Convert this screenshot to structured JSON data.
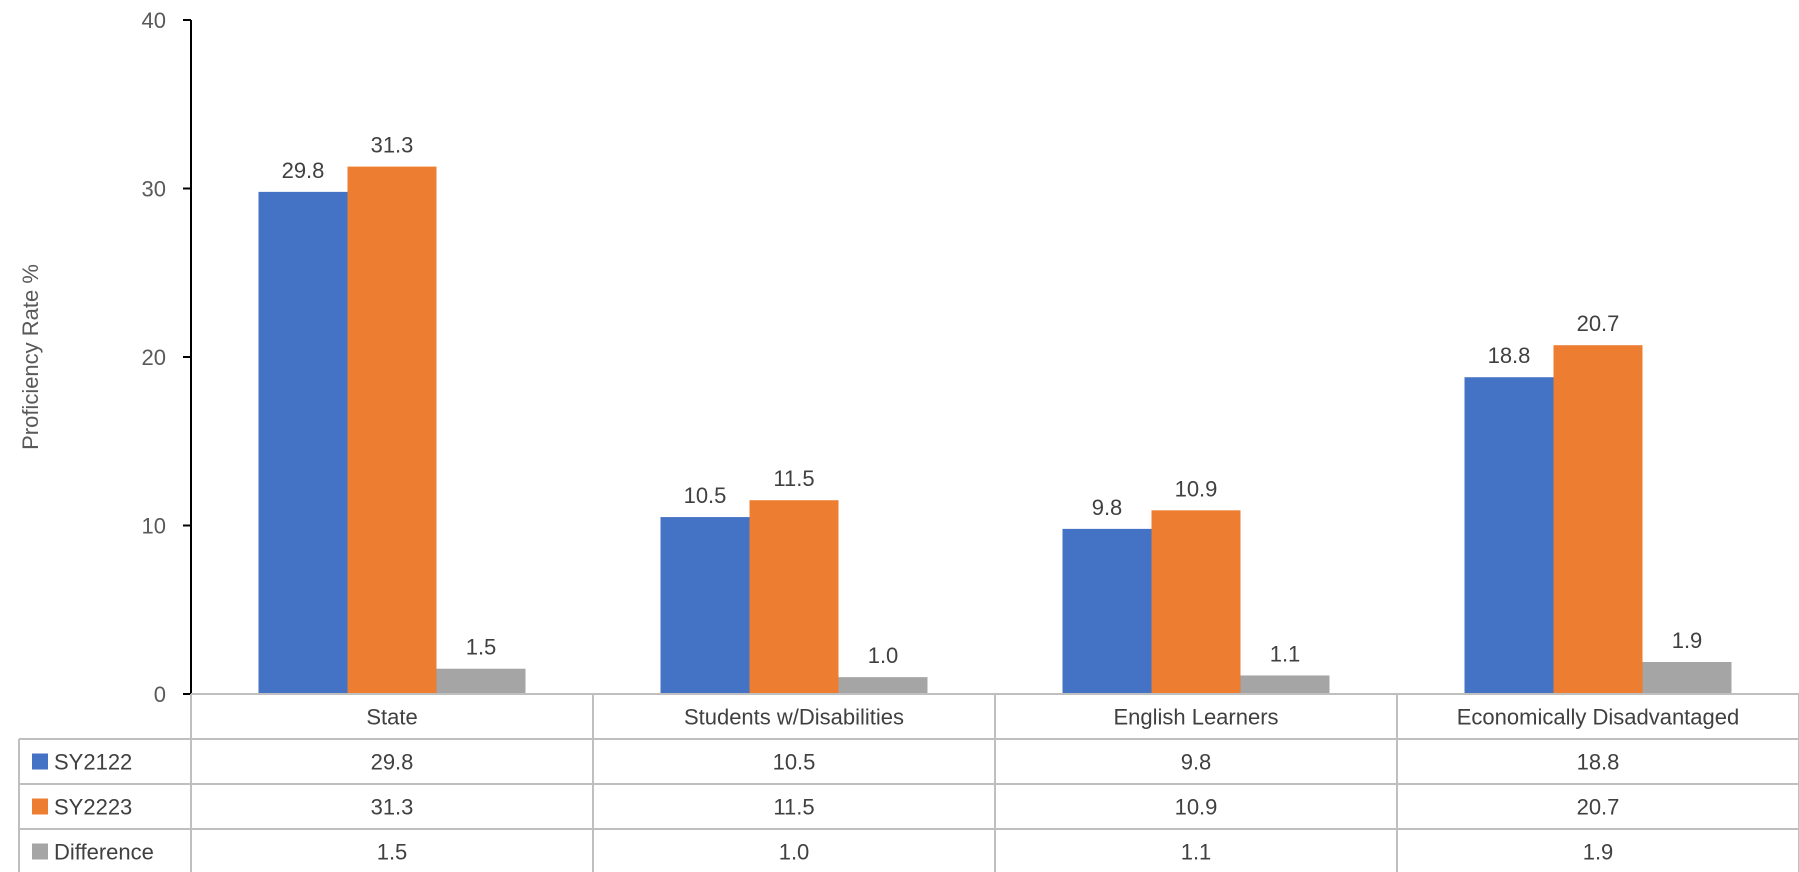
{
  "chart_data": {
    "type": "bar",
    "title": "",
    "xlabel": "",
    "ylabel": "Proficiency Rate %",
    "ylim": [
      0,
      40
    ],
    "yticks": [
      0,
      10,
      20,
      30,
      40
    ],
    "categories": [
      "State",
      "Students w/Disabilities",
      "English Learners",
      "Economically Disadvantaged"
    ],
    "series": [
      {
        "name": "SY2122",
        "values": [
          29.8,
          10.5,
          9.8,
          18.8
        ],
        "labels": [
          "29.8",
          "10.5",
          "9.8",
          "18.8"
        ],
        "color": "#4472C4",
        "label_color": "#404040"
      },
      {
        "name": "SY2223",
        "values": [
          31.3,
          11.5,
          10.9,
          20.7
        ],
        "labels": [
          "31.3",
          "11.5",
          "10.9",
          "20.7"
        ],
        "color": "#ED7D31",
        "label_color": "#404040"
      },
      {
        "name": "Difference",
        "values": [
          1.5,
          1.0,
          1.1,
          1.9
        ],
        "labels": [
          "1.5",
          "1.0",
          "1.1",
          "1.9"
        ],
        "color": "#A5A5A5",
        "label_color": "#00B050"
      }
    ],
    "legend": "data-table",
    "grid": false
  }
}
